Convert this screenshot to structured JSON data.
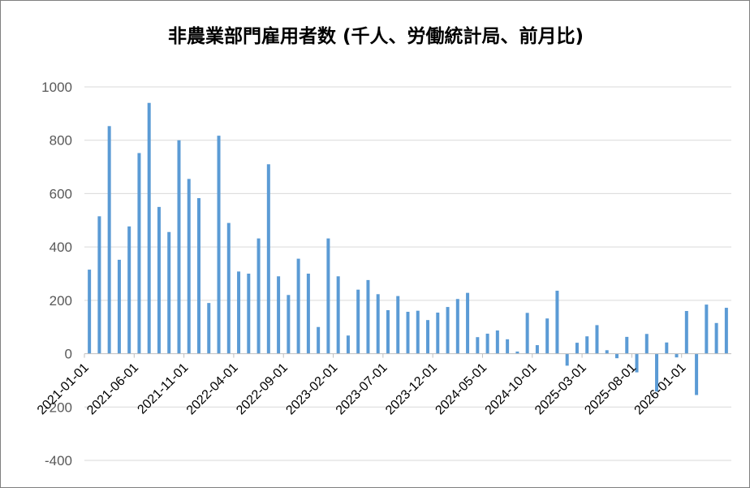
{
  "chart_data": {
    "type": "bar",
    "title": "非農業部門雇用者数 (千人、労働統計局、前月比)",
    "xlabel": "",
    "ylabel": "",
    "ylim": [
      -400,
      1000
    ],
    "yticks": [
      -400,
      -200,
      0,
      200,
      400,
      600,
      800,
      1000
    ],
    "xtick_labels": [
      "2021-01-01",
      "2021-06-01",
      "2021-11-01",
      "2022-04-01",
      "2022-09-01",
      "2023-02-01",
      "2023-07-01",
      "2023-12-01",
      "2024-05-01",
      "2024-10-01",
      "2025-03-01",
      "2025-08-01",
      "2026-01-01"
    ],
    "grid": true,
    "legend": "none",
    "bar_color": "#5B9BD5",
    "categories": [
      "2021-01",
      "2021-02",
      "2021-03",
      "2021-04",
      "2021-05",
      "2021-06",
      "2021-07",
      "2021-08",
      "2021-09",
      "2021-10",
      "2021-11",
      "2021-12",
      "2022-01",
      "2022-02",
      "2022-03",
      "2022-04",
      "2022-05",
      "2022-06",
      "2022-07",
      "2022-08",
      "2022-09",
      "2022-10",
      "2022-11",
      "2022-12",
      "2023-01",
      "2023-02",
      "2023-03",
      "2023-04",
      "2023-05",
      "2023-06",
      "2023-07",
      "2023-08",
      "2023-09",
      "2023-10",
      "2023-11",
      "2023-12",
      "2024-01",
      "2024-02",
      "2024-03",
      "2024-04",
      "2024-05",
      "2024-06",
      "2024-07",
      "2024-08",
      "2024-09",
      "2024-10",
      "2024-11",
      "2024-12",
      "2025-01",
      "2025-02",
      "2025-03",
      "2025-04",
      "2025-05",
      "2025-06",
      "2025-07",
      "2025-08",
      "2025-09",
      "2025-10",
      "2025-11",
      "2025-12",
      "2026-01",
      "2026-02",
      "2026-03",
      "2026-04",
      "2026-05"
    ],
    "values": [
      315,
      515,
      853,
      352,
      477,
      752,
      940,
      550,
      456,
      800,
      655,
      583,
      190,
      817,
      490,
      308,
      300,
      432,
      710,
      290,
      220,
      356,
      300,
      100,
      432,
      290,
      68,
      240,
      276,
      223,
      163,
      216,
      157,
      161,
      126,
      154,
      175,
      205,
      228,
      62,
      75,
      87,
      54,
      8,
      153,
      32,
      132,
      236,
      -45,
      41,
      65,
      107,
      13,
      -17,
      63,
      -70,
      74,
      -142,
      42,
      -14,
      160,
      -155,
      184,
      115,
      172
    ]
  }
}
